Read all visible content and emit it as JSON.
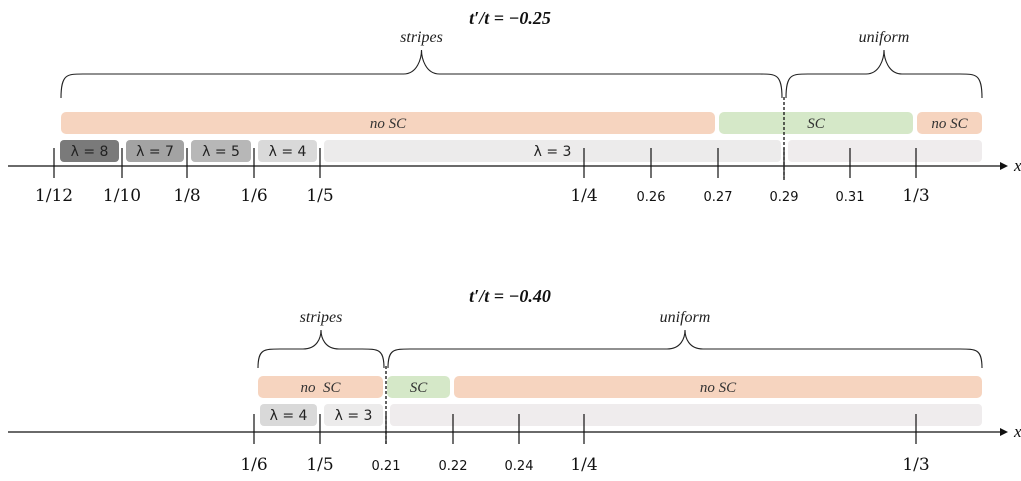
{
  "palette": {
    "no_sc": "#f6d4bf",
    "sc": "#d5e8c8",
    "uniform_band": "#efeced",
    "lambda8": "#7a7a7a",
    "lambda7": "#a3a3a3",
    "lambda5": "#b7b7b7",
    "lambda4": "#d9d9d9",
    "lambda3": "#ecebeb",
    "axis": "#111111"
  },
  "panels": [
    {
      "title": "t′/t = −0.25",
      "regimes": [
        {
          "label": "stripes",
          "from": "1/12",
          "to": "0.29"
        },
        {
          "label": "uniform",
          "from": "0.29",
          "to": "end"
        }
      ],
      "sc_segments": [
        {
          "label": "no SC",
          "kind": "no_sc",
          "from": "1/12",
          "to": "0.27"
        },
        {
          "label": "SC",
          "kind": "sc",
          "from": "0.27",
          "to": "1/3"
        },
        {
          "label": "no SC",
          "kind": "no_sc",
          "from": "1/3",
          "to": "end"
        }
      ],
      "lambda_segments": [
        {
          "label": "λ = 8",
          "kind": "lambda8",
          "from": "1/12",
          "to": "1/10"
        },
        {
          "label": "λ = 7",
          "kind": "lambda7",
          "from": "1/10",
          "to": "1/8"
        },
        {
          "label": "λ = 5",
          "kind": "lambda5",
          "from": "1/8",
          "to": "1/6"
        },
        {
          "label": "λ = 4",
          "kind": "lambda4",
          "from": "1/6",
          "to": "1/5"
        },
        {
          "label": "λ = 3",
          "kind": "lambda3",
          "from": "1/5",
          "to": "0.29"
        },
        {
          "label": "",
          "kind": "uniform_band",
          "from": "0.29",
          "to": "end"
        }
      ],
      "ticks": [
        "1/12",
        "1/10",
        "1/8",
        "1/6",
        "1/5",
        "1/4",
        "0.26",
        "0.27",
        "0.29",
        "0.31",
        "1/3"
      ],
      "boundary": "0.29",
      "axis_label": "x"
    },
    {
      "title": "t′/t = −0.40",
      "regimes": [
        {
          "label": "stripes",
          "from": "1/6",
          "to": "0.21"
        },
        {
          "label": "uniform",
          "from": "0.21",
          "to": "end"
        }
      ],
      "sc_segments": [
        {
          "label": "no  SC",
          "kind": "no_sc",
          "from": "1/6",
          "to": "0.21"
        },
        {
          "label": "SC",
          "kind": "sc",
          "from": "0.21",
          "to": "0.22"
        },
        {
          "label": "no SC",
          "kind": "no_sc",
          "from": "0.22",
          "to": "end"
        }
      ],
      "lambda_segments": [
        {
          "label": "λ = 4",
          "kind": "lambda4",
          "from": "1/6",
          "to": "1/5"
        },
        {
          "label": "λ = 3",
          "kind": "lambda3",
          "from": "1/5",
          "to": "0.21"
        },
        {
          "label": "",
          "kind": "uniform_band",
          "from": "0.21",
          "to": "end"
        }
      ],
      "ticks": [
        "1/6",
        "1/5",
        "0.21",
        "0.22",
        "0.24",
        "1/4",
        "1/3"
      ],
      "boundary": "0.21",
      "axis_label": "x"
    }
  ]
}
